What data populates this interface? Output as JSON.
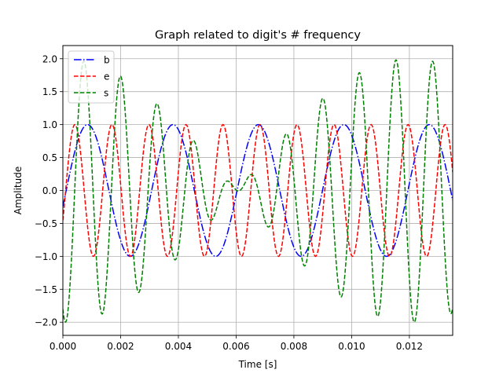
{
  "chart_data": {
    "type": "line",
    "title": "Graph related to digit's # frequency",
    "xlabel": "Time [s]",
    "ylabel": "Amplitude",
    "xlim": [
      0,
      0.0135
    ],
    "ylim": [
      -2.2,
      2.2
    ],
    "grid": true,
    "legend_position": "top-left",
    "x_ticks": [
      0,
      0.002,
      0.004,
      0.006,
      0.008,
      0.01,
      0.012
    ],
    "x_tick_labels": [
      "0.000",
      "0.002",
      "0.004",
      "0.006",
      "0.008",
      "0.010",
      "0.012"
    ],
    "y_ticks": [
      -2.0,
      -1.5,
      -1.0,
      -0.5,
      0.0,
      0.5,
      1.0,
      1.5,
      2.0
    ],
    "y_tick_labels": [
      "−2.0",
      "−1.5",
      "−1.0",
      "−0.5",
      "0.0",
      "0.5",
      "1.0",
      "1.5",
      "2.0"
    ],
    "series": [
      {
        "name": "b",
        "color": "#0000ff",
        "linestyle": "dashdot",
        "formula": "sin(2*pi*f*t - phase)",
        "frequency_hz": 338,
        "phase_rad": 0.245
      },
      {
        "name": "e",
        "color": "#ff0000",
        "linestyle": "dashed",
        "formula": "sin(2*pi*f*t - phase)",
        "frequency_hz": 780,
        "phase_rad": 0.47
      },
      {
        "name": "s",
        "color": "#008000",
        "linestyle": "dashed",
        "formula": "sum of component sines",
        "components": [
          {
            "frequency_hz": 828,
            "amplitude": 1.0,
            "phase_rad": 2.02
          },
          {
            "frequency_hz": 745,
            "amplitude": 1.0,
            "phase_rad": 2.02
          }
        ]
      }
    ]
  }
}
